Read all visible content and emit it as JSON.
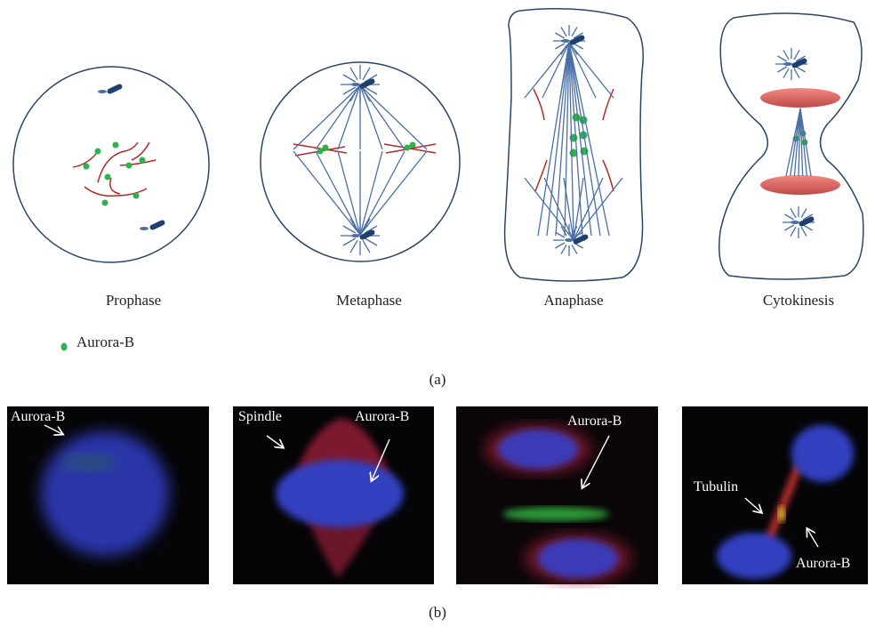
{
  "panel_a": {
    "stages": [
      "Prophase",
      "Metaphase",
      "Anaphase",
      "Cytokinesis"
    ],
    "legend": "Aurora-B",
    "label": "(a)"
  },
  "panel_b": {
    "images": [
      {
        "labels": [
          "Aurora-B"
        ]
      },
      {
        "labels": [
          "Spindle",
          "Aurora-B"
        ]
      },
      {
        "labels": [
          "Aurora-B"
        ]
      },
      {
        "labels": [
          "Tubulin",
          "Aurora-B"
        ]
      }
    ],
    "label": "(b)"
  }
}
